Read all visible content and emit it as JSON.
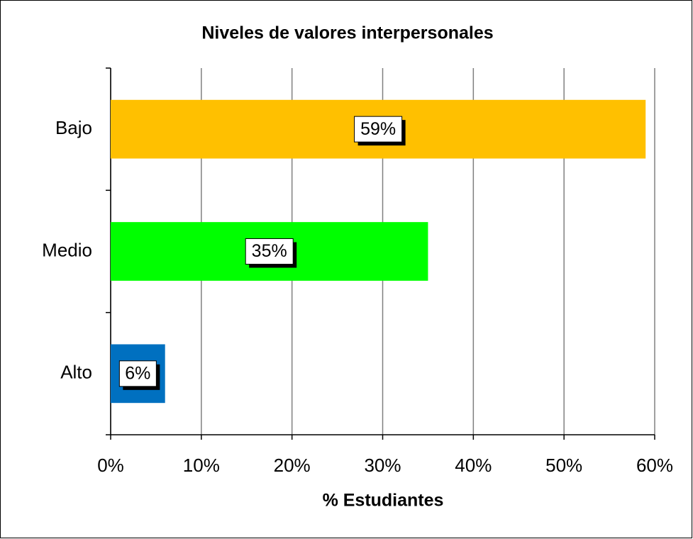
{
  "chart_data": {
    "type": "bar",
    "orientation": "horizontal",
    "title": "Niveles de valores interpersonales",
    "x_label": "% Estudiantes",
    "categories": [
      "Bajo",
      "Medio",
      "Alto"
    ],
    "values": [
      59,
      35,
      6
    ],
    "value_labels": [
      "59%",
      "35%",
      "6%"
    ],
    "colors": [
      "#ffc000",
      "#00ff00",
      "#0070c0"
    ],
    "xlim": [
      0,
      60
    ],
    "xticks": [
      {
        "value": 0,
        "label": "0%"
      },
      {
        "value": 10,
        "label": "10%"
      },
      {
        "value": 20,
        "label": "20%"
      },
      {
        "value": 30,
        "label": "30%"
      },
      {
        "value": 40,
        "label": "40%"
      },
      {
        "value": 50,
        "label": "50%"
      },
      {
        "value": 60,
        "label": "60%"
      }
    ],
    "grid": true
  }
}
